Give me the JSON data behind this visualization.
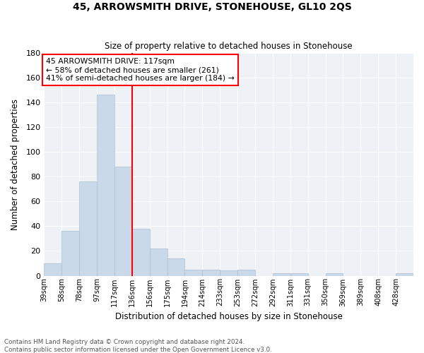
{
  "title": "45, ARROWSMITH DRIVE, STONEHOUSE, GL10 2QS",
  "subtitle": "Size of property relative to detached houses in Stonehouse",
  "xlabel": "Distribution of detached houses by size in Stonehouse",
  "ylabel": "Number of detached properties",
  "bar_color": "#c9d9ea",
  "bar_edgecolor": "#aabfcf",
  "background_color": "#eef2f7",
  "grid_color": "#ffffff",
  "categories": [
    "39sqm",
    "58sqm",
    "78sqm",
    "97sqm",
    "117sqm",
    "136sqm",
    "156sqm",
    "175sqm",
    "194sqm",
    "214sqm",
    "233sqm",
    "253sqm",
    "272sqm",
    "292sqm",
    "311sqm",
    "331sqm",
    "350sqm",
    "369sqm",
    "389sqm",
    "408sqm",
    "428sqm"
  ],
  "values": [
    10,
    36,
    76,
    146,
    88,
    38,
    22,
    14,
    5,
    5,
    4,
    5,
    0,
    2,
    2,
    0,
    2,
    0,
    0,
    0,
    2
  ],
  "red_line_index": 4,
  "annotation_text": "45 ARROWSMITH DRIVE: 117sqm\n← 58% of detached houses are smaller (261)\n41% of semi-detached houses are larger (184) →",
  "ylim": [
    0,
    180
  ],
  "yticks": [
    0,
    20,
    40,
    60,
    80,
    100,
    120,
    140,
    160,
    180
  ],
  "footnote": "Contains HM Land Registry data © Crown copyright and database right 2024.\nContains public sector information licensed under the Open Government Licence v3.0."
}
